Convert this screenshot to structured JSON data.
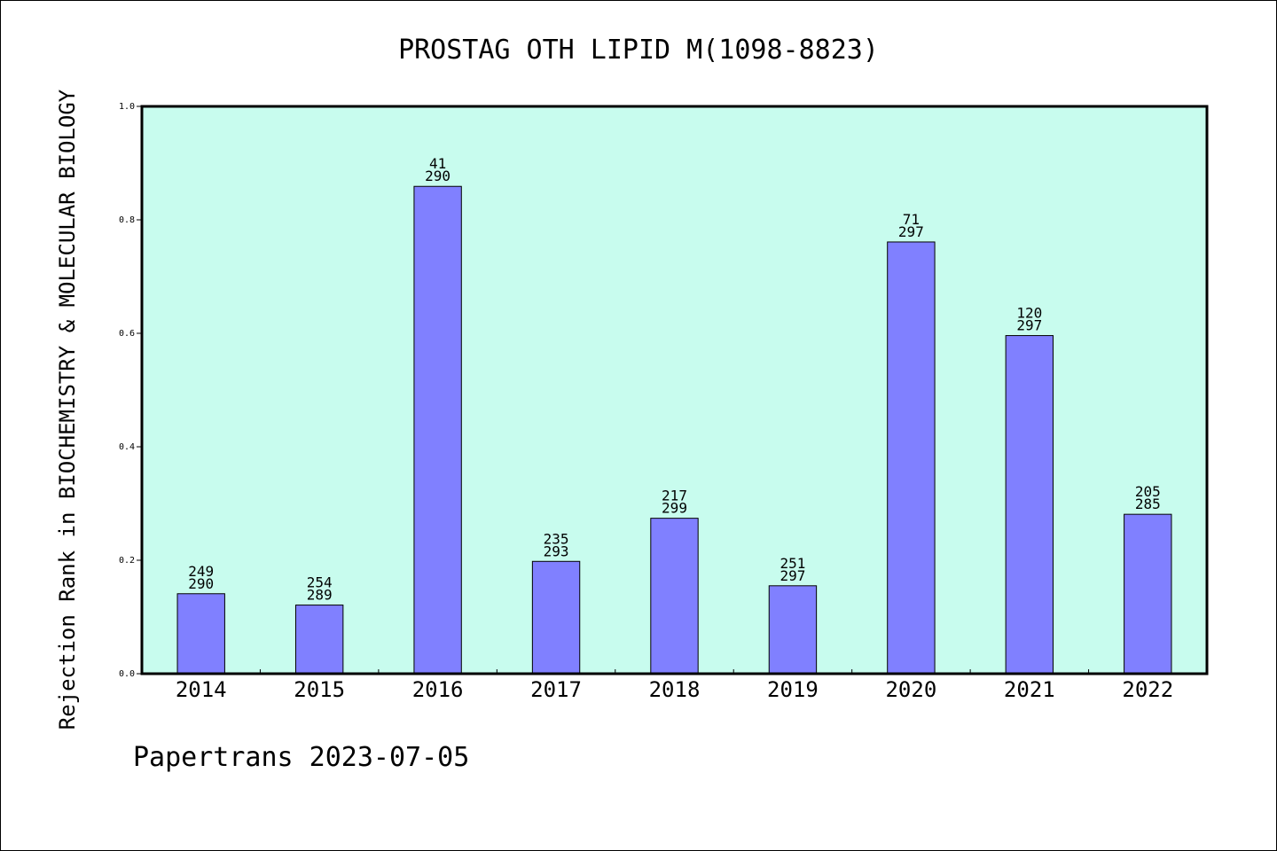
{
  "chart_data": {
    "type": "bar",
    "title": "PROSTAG OTH LIPID M(1098-8823)",
    "ylabel": "Rejection Rank in BIOCHEMISTRY & MOLECULAR BIOLOGY",
    "xlabel": "",
    "ylim": [
      0,
      1.0
    ],
    "yticks": [
      "0.0",
      "0.2",
      "0.4",
      "0.6",
      "0.8",
      "1.0"
    ],
    "categories": [
      "2014",
      "2015",
      "2016",
      "2017",
      "2018",
      "2019",
      "2020",
      "2021",
      "2022"
    ],
    "values": [
      0.141,
      0.121,
      0.859,
      0.198,
      0.274,
      0.155,
      0.761,
      0.596,
      0.281
    ],
    "labels": [
      {
        "rank": "249",
        "total": "290"
      },
      {
        "rank": "254",
        "total": "289"
      },
      {
        "rank": "41",
        "total": "290"
      },
      {
        "rank": "235",
        "total": "293"
      },
      {
        "rank": "217",
        "total": "299"
      },
      {
        "rank": "251",
        "total": "297"
      },
      {
        "rank": "71",
        "total": "297"
      },
      {
        "rank": "120",
        "total": "297"
      },
      {
        "rank": "205",
        "total": "285"
      }
    ],
    "grid": false,
    "colors": {
      "plot_background": "#c8fcee",
      "bar_fill": "#8080ff",
      "bar_stroke": "#000000"
    }
  },
  "footer": "Papertrans 2023-07-05"
}
